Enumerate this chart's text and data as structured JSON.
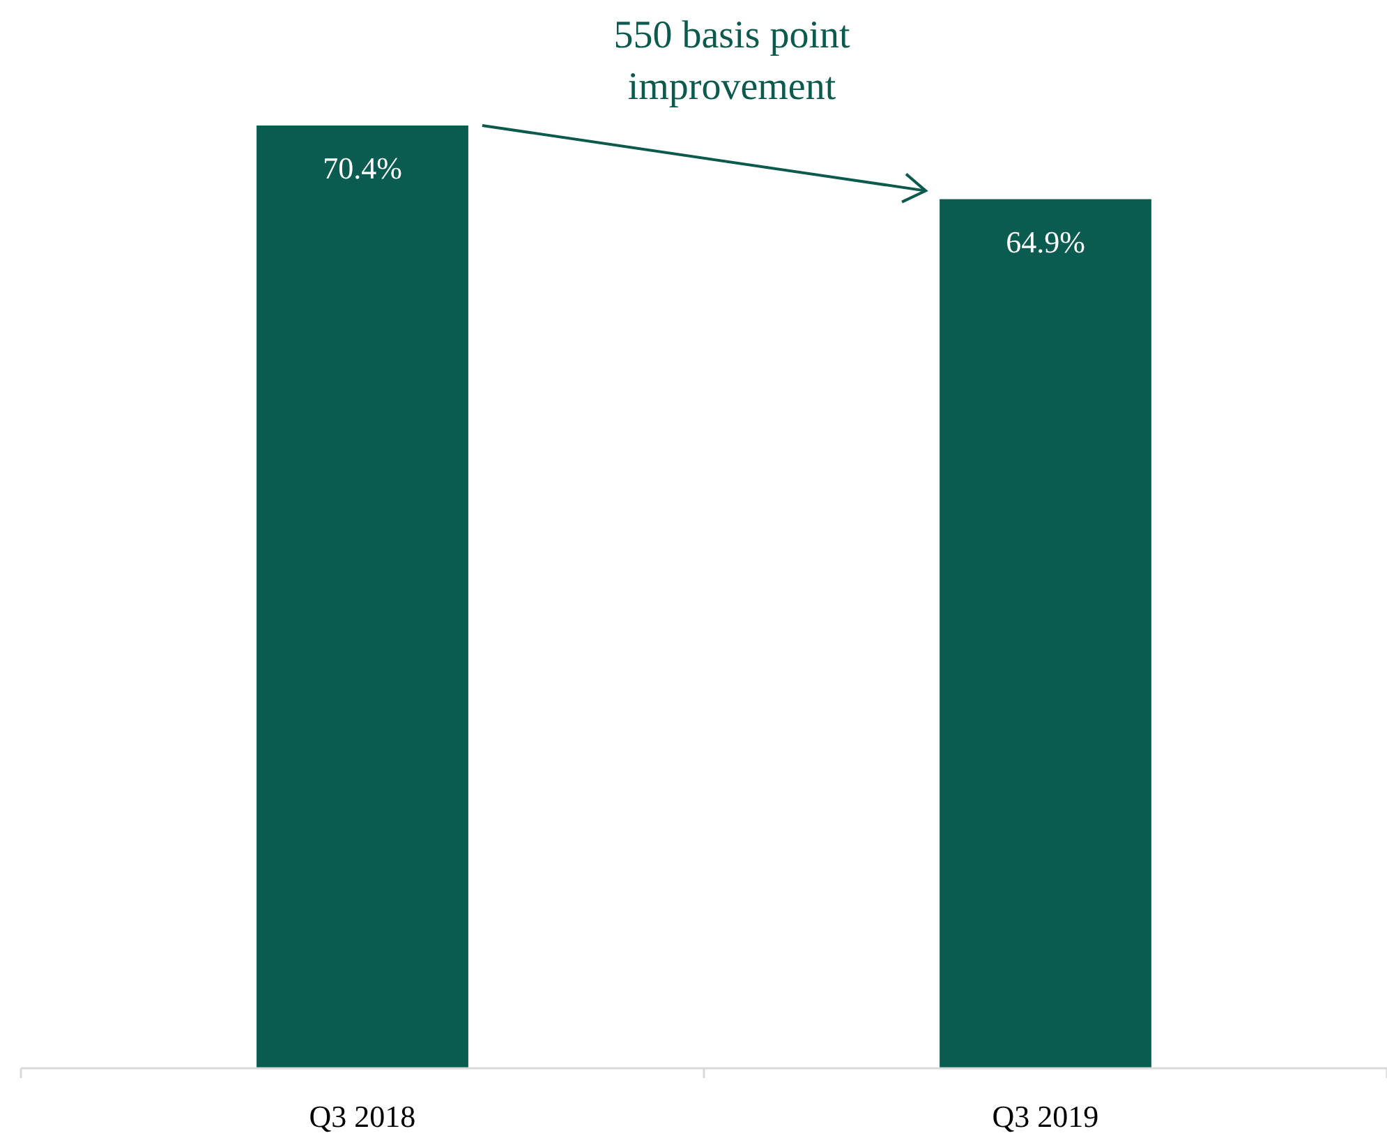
{
  "chart_data": {
    "type": "bar",
    "categories": [
      "Q3 2018",
      "Q3 2019"
    ],
    "values": [
      70.4,
      64.9
    ],
    "value_labels": [
      "70.4%",
      "64.9%"
    ],
    "color": "#0a5c50",
    "data_labels": true,
    "annotations": [
      "550 basis point\nimprovement"
    ]
  }
}
